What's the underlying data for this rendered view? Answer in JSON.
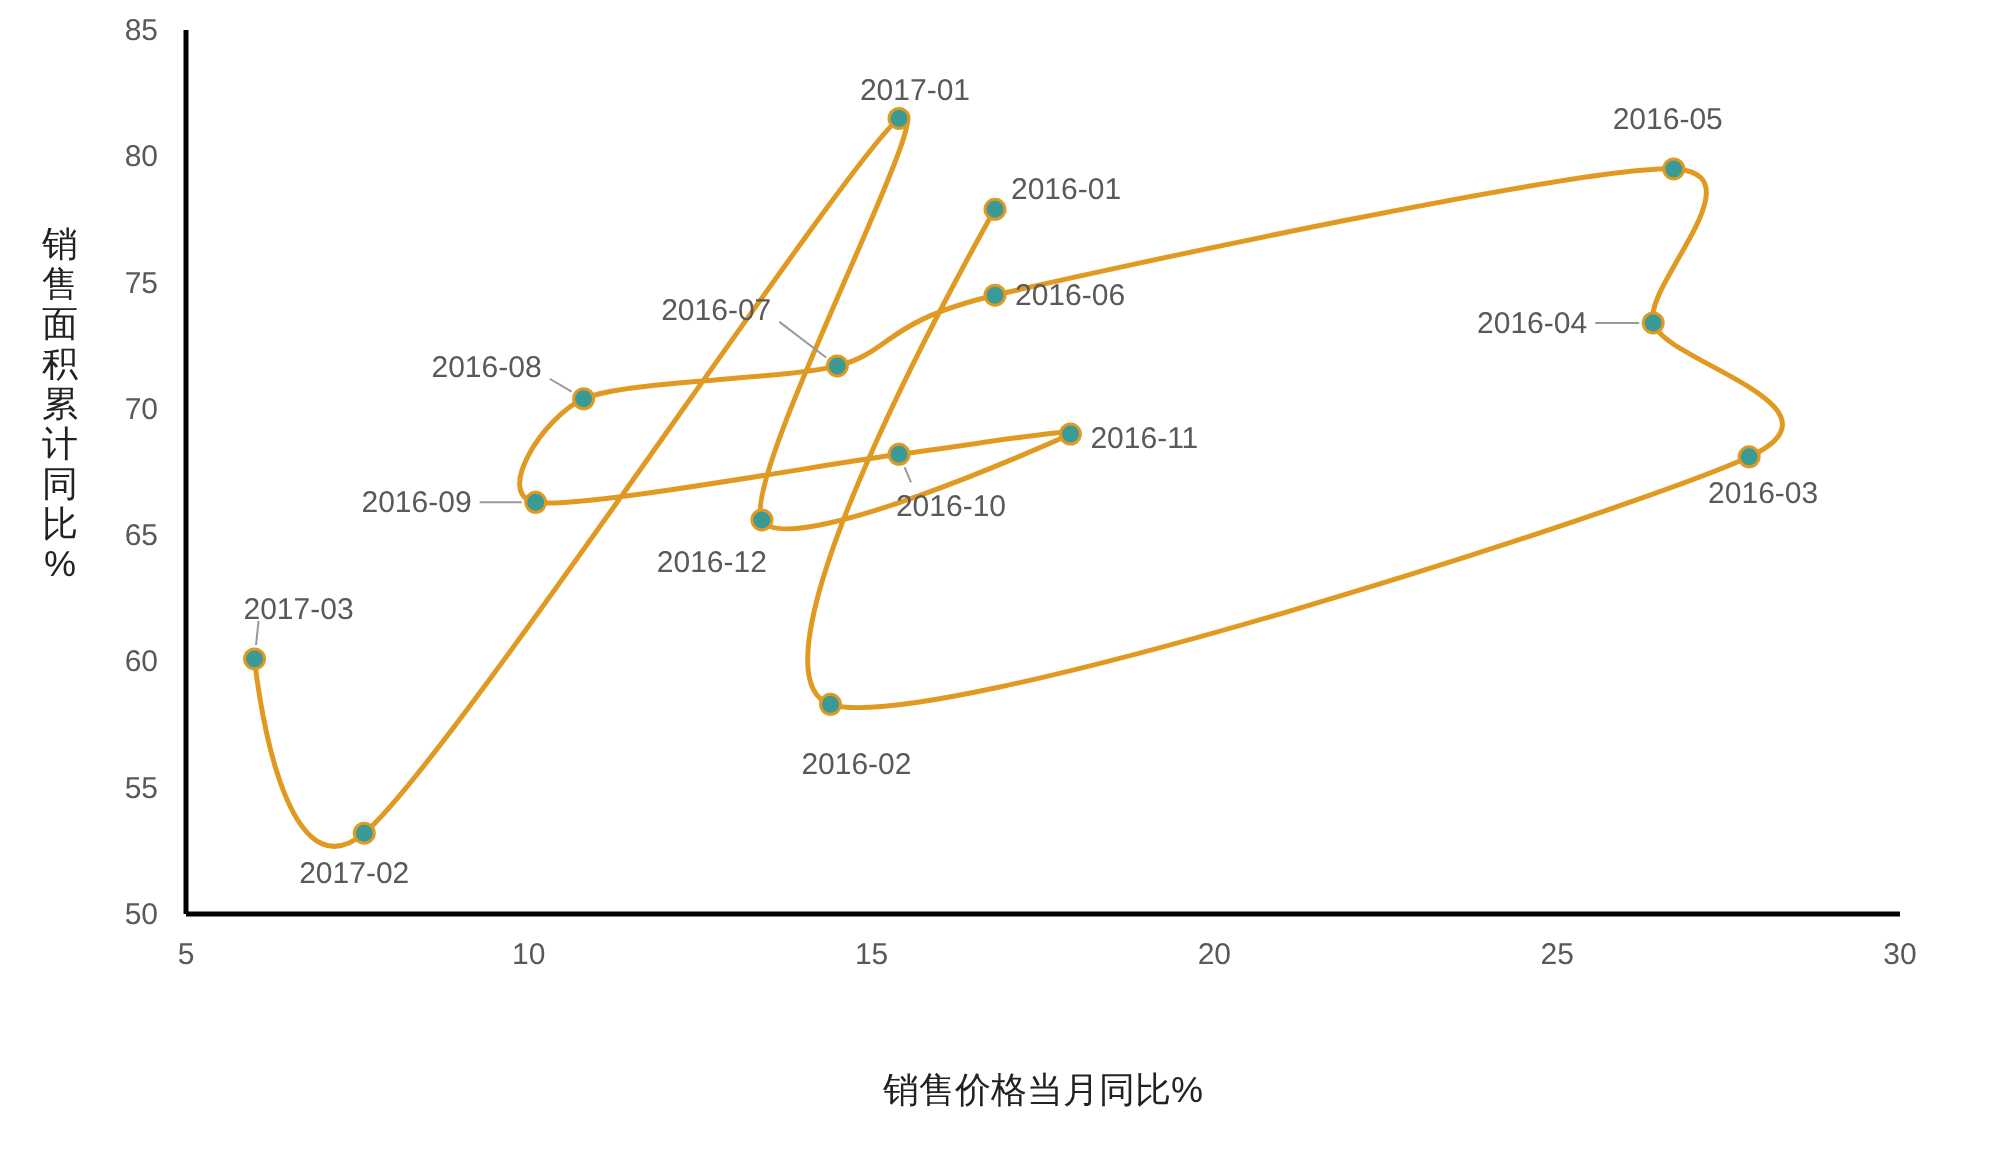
{
  "chart_data": {
    "type": "line",
    "xlabel": "销售价格当月同比%",
    "ylabel": "销售面积累计同比%",
    "xlim": [
      5,
      30
    ],
    "xticks": [
      5,
      10,
      15,
      20,
      25,
      30
    ],
    "ylim": [
      50,
      85
    ],
    "yticks": [
      50,
      55,
      60,
      65,
      70,
      75,
      80,
      85
    ],
    "grid": false,
    "marker": "circle",
    "line_style": "solid",
    "series": [
      {
        "color": "#e09a22",
        "x": [
          16.8,
          14.4,
          27.8,
          26.4,
          26.7,
          16.8,
          14.5,
          10.8,
          10.1,
          15.4,
          17.9,
          13.4,
          15.4,
          7.6,
          6.0
        ],
        "values": [
          77.9,
          58.3,
          68.1,
          73.4,
          79.5,
          74.5,
          71.7,
          70.4,
          66.3,
          68.2,
          69.0,
          65.6,
          81.5,
          53.2,
          60.1
        ]
      }
    ],
    "annotations": [
      {
        "text": "2016-01",
        "x": 16.8,
        "y": 77.9
      },
      {
        "text": "2016-02",
        "x": 14.4,
        "y": 58.3
      },
      {
        "text": "2016-03",
        "x": 27.8,
        "y": 68.1
      },
      {
        "text": "2016-04",
        "x": 26.4,
        "y": 73.4
      },
      {
        "text": "2016-05",
        "x": 26.7,
        "y": 79.5
      },
      {
        "text": "2016-06",
        "x": 16.8,
        "y": 74.5
      },
      {
        "text": "2016-07",
        "x": 14.5,
        "y": 71.7
      },
      {
        "text": "2016-08",
        "x": 10.8,
        "y": 70.4
      },
      {
        "text": "2016-09",
        "x": 10.1,
        "y": 66.3
      },
      {
        "text": "2016-10",
        "x": 15.4,
        "y": 68.2
      },
      {
        "text": "2016-11",
        "x": 17.9,
        "y": 69.0
      },
      {
        "text": "2016-12",
        "x": 13.4,
        "y": 65.6
      },
      {
        "text": "2017-01",
        "x": 15.4,
        "y": 81.5
      },
      {
        "text": "2017-02",
        "x": 7.6,
        "y": 53.2
      },
      {
        "text": "2017-03",
        "x": 6.0,
        "y": 60.1
      }
    ]
  }
}
